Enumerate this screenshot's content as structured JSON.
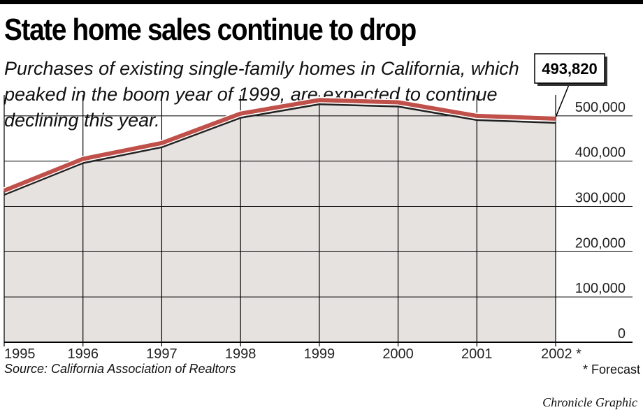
{
  "header": {
    "title": "State home sales continue to drop",
    "subtitle": "Purchases of existing single-family homes in California, which peaked in the boom year of 1999, are expected to continue declining this year."
  },
  "footer": {
    "source": "Source: California Association of Realtors",
    "footnote": "* Forecast",
    "credit": "Chronicle Graphic"
  },
  "colors": {
    "area_fill": "#e6e2df",
    "line": "#c0504a",
    "grid": "#000000"
  },
  "chart_data": {
    "type": "area",
    "title": "State home sales continue to drop",
    "categories": [
      "1995",
      "1996",
      "1997",
      "1998",
      "1999",
      "2000",
      "2001",
      "2002 *"
    ],
    "x": [
      1995,
      1996,
      1997,
      1998,
      1999,
      2000,
      2001,
      2002
    ],
    "series": [
      {
        "values": [
          335000,
          405000,
          440000,
          505000,
          535000,
          530000,
          500000,
          493820
        ]
      }
    ],
    "yticks": [
      0,
      100000,
      200000,
      300000,
      400000,
      500000
    ],
    "ytick_labels": [
      "0",
      "100,000",
      "200,000",
      "300,000",
      "400,000",
      "500,000"
    ],
    "ylim": [
      0,
      540000
    ],
    "grid": true,
    "annotation": {
      "label": "493,820",
      "x": 2002,
      "y": 493820
    },
    "forecast_marker": "*",
    "xlabel": "",
    "ylabel": ""
  }
}
